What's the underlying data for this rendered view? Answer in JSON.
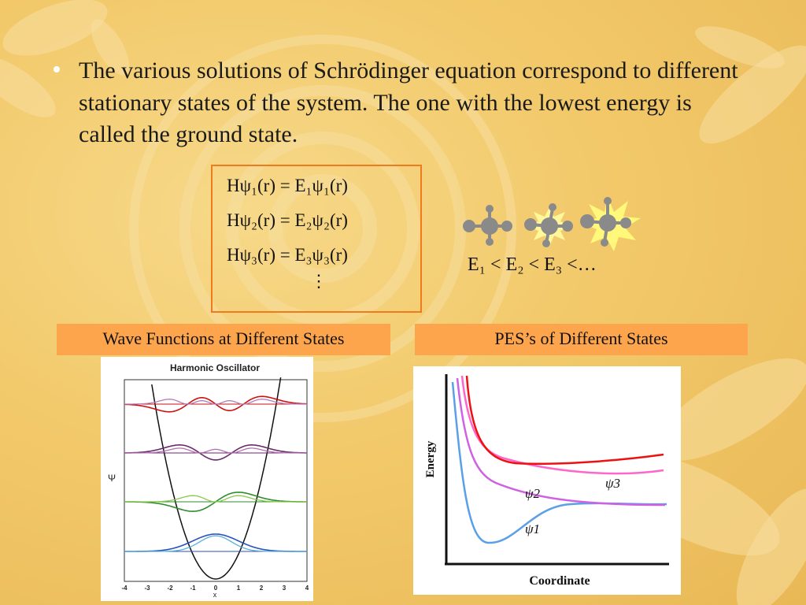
{
  "bullet": {
    "text": "The various solutions of Schrödinger equation correspond to different stationary states of the system. The one with the lowest energy is called the ground state."
  },
  "equations": {
    "lines": [
      "Hψ₁(r) = E₁ψ₁(r)",
      "Hψ₂(r) = E₂ψ₂(r)",
      "Hψ₃(r) = E₃ψ₃(r)"
    ],
    "ellipsis": "⋮"
  },
  "inequality": "E₁ < E₂ < E₃ <…",
  "labels": {
    "left": "Wave Functions at Different States",
    "right": "PES’s of Different States"
  },
  "left_chart": {
    "title": "Harmonic Oscillator",
    "ylabel": "Ψ",
    "xlabel": "x",
    "xticks": [
      "-4",
      "-3",
      "-2",
      "-1",
      "0",
      "1",
      "2",
      "3",
      "4"
    ]
  },
  "right_chart": {
    "ylabel": "Energy",
    "xlabel": "Coordinate",
    "curve_labels": [
      "ψ1",
      "ψ2",
      "ψ3"
    ]
  },
  "colors": {
    "accent_border": "#ef7b1d",
    "label_fill": "#fda54d",
    "bullet": "#ffffff"
  }
}
